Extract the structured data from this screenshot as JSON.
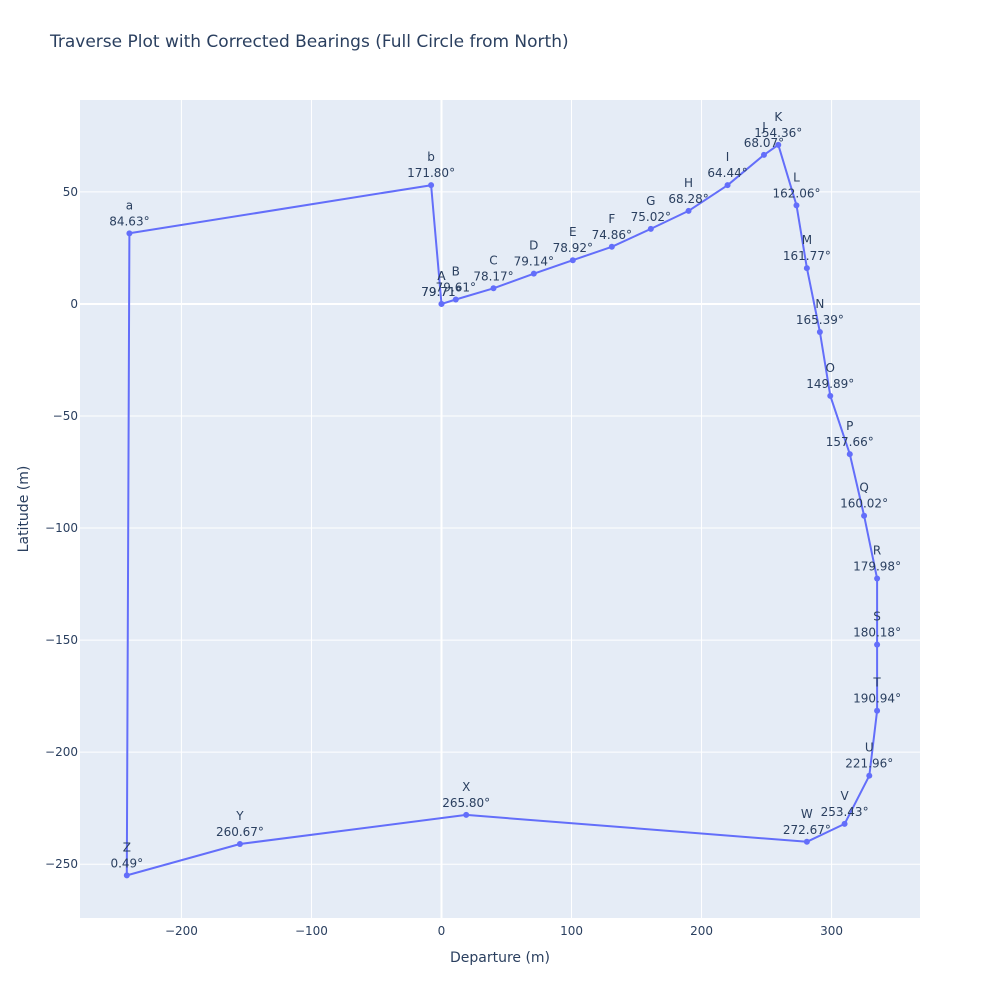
{
  "chart_data": {
    "type": "line",
    "title": "Traverse Plot with Corrected Bearings (Full Circle from North)",
    "xlabel": "Departure (m)",
    "ylabel": "Latitude (m)",
    "xlim": [
      -278,
      368
    ],
    "ylim": [
      -274,
      91
    ],
    "xticks": [
      -200,
      -100,
      0,
      100,
      200,
      300
    ],
    "yticks": [
      -250,
      -200,
      -150,
      -100,
      -50,
      0,
      50
    ],
    "xtick_labels": [
      "−200",
      "−100",
      "0",
      "100",
      "200",
      "300"
    ],
    "ytick_labels": [
      "−250",
      "−200",
      "−150",
      "−100",
      "−50",
      "0",
      "50"
    ],
    "grid": true,
    "line_color": "#636efa",
    "plot_bg": "#e5ecf6",
    "series": [
      {
        "points": [
          {
            "name": "A",
            "bearing": "79.71°",
            "x": 0,
            "y": 0
          },
          {
            "name": "B",
            "bearing": "79.61°",
            "x": 11,
            "y": 2
          },
          {
            "name": "C",
            "bearing": "78.17°",
            "x": 40,
            "y": 7
          },
          {
            "name": "D",
            "bearing": "79.14°",
            "x": 71,
            "y": 13.5
          },
          {
            "name": "E",
            "bearing": "78.92°",
            "x": 101,
            "y": 19.5
          },
          {
            "name": "F",
            "bearing": "74.86°",
            "x": 131,
            "y": 25.5
          },
          {
            "name": "G",
            "bearing": "75.02°",
            "x": 161,
            "y": 33.5
          },
          {
            "name": "H",
            "bearing": "68.28°",
            "x": 190,
            "y": 41.5
          },
          {
            "name": "I",
            "bearing": "64.44°",
            "x": 220,
            "y": 53
          },
          {
            "name": "J",
            "bearing": "68.07°",
            "x": 248,
            "y": 66.5
          },
          {
            "name": "K",
            "bearing": "154.36°",
            "x": 259,
            "y": 71
          },
          {
            "name": "L",
            "bearing": "162.06°",
            "x": 273,
            "y": 44
          },
          {
            "name": "M",
            "bearing": "161.77°",
            "x": 281,
            "y": 16
          },
          {
            "name": "N",
            "bearing": "165.39°",
            "x": 291,
            "y": -12.5
          },
          {
            "name": "O",
            "bearing": "149.89°",
            "x": 299,
            "y": -41
          },
          {
            "name": "P",
            "bearing": "157.66°",
            "x": 314,
            "y": -67
          },
          {
            "name": "Q",
            "bearing": "160.02°",
            "x": 325,
            "y": -94.5
          },
          {
            "name": "R",
            "bearing": "179.98°",
            "x": 335,
            "y": -122.5
          },
          {
            "name": "S",
            "bearing": "180.18°",
            "x": 335,
            "y": -152
          },
          {
            "name": "T",
            "bearing": "190.94°",
            "x": 335,
            "y": -181.5
          },
          {
            "name": "U",
            "bearing": "221.96°",
            "x": 329,
            "y": -210.5
          },
          {
            "name": "V",
            "bearing": "253.43°",
            "x": 310,
            "y": -232
          },
          {
            "name": "W",
            "bearing": "272.67°",
            "x": 281,
            "y": -240
          },
          {
            "name": "X",
            "bearing": "265.80°",
            "x": 19,
            "y": -228
          },
          {
            "name": "Y",
            "bearing": "260.67°",
            "x": -155,
            "y": -241
          },
          {
            "name": "Z",
            "bearing": "0.49°",
            "x": -242,
            "y": -255
          },
          {
            "name": "a",
            "bearing": "84.63°",
            "x": -240,
            "y": 31.5
          },
          {
            "name": "b",
            "bearing": "171.80°",
            "x": -8,
            "y": 53
          },
          {
            "name": "A",
            "bearing": "79.71°",
            "x": 0,
            "y": 0
          }
        ]
      }
    ]
  }
}
